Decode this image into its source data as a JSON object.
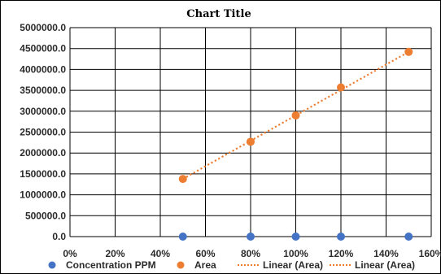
{
  "colors": {
    "concentration": "#4472C4",
    "area": "#ED7D31",
    "grid": "#000000",
    "frame": "#000000"
  },
  "chart_data": {
    "type": "scatter",
    "title": "Chart Title",
    "xlabel": "",
    "ylabel": "",
    "xlim": [
      0,
      1.6
    ],
    "ylim": [
      0,
      5000000
    ],
    "x_ticks": [
      "0%",
      "20%",
      "40%",
      "60%",
      "80%",
      "100%",
      "120%",
      "140%",
      "160%"
    ],
    "y_ticks": [
      "0.0",
      "500000.0",
      "1000000.0",
      "1500000.0",
      "2000000.0",
      "2500000.0",
      "3000000.0",
      "3500000.0",
      "4000000.0",
      "4500000.0",
      "5000000.0"
    ],
    "grid": true,
    "legend_position": "bottom",
    "series": [
      {
        "name": "Concentration PPM",
        "color": "#4472C4",
        "marker": "circle",
        "x": [
          0.5,
          0.8,
          1.0,
          1.2,
          1.5
        ],
        "y": [
          0,
          0,
          0,
          0,
          0
        ]
      },
      {
        "name": "Area",
        "color": "#ED7D31",
        "marker": "circle",
        "x": [
          0.5,
          0.8,
          1.0,
          1.2,
          1.5
        ],
        "y": [
          1380000,
          2270000,
          2900000,
          3570000,
          4420000
        ]
      }
    ],
    "trendlines": [
      {
        "name": "Linear (Area)",
        "series": "Area",
        "color": "#ED7D31",
        "style": "dotted",
        "x": [
          0.5,
          1.5
        ],
        "y": [
          1380000,
          4420000
        ]
      },
      {
        "name": "Linear (Area)",
        "series": "Area",
        "color": "#ED7D31",
        "style": "dotted",
        "x": [
          0.5,
          1.5
        ],
        "y": [
          1380000,
          4420000
        ]
      }
    ],
    "legend": [
      {
        "label": "Concentration PPM",
        "kind": "marker",
        "color": "#4472C4"
      },
      {
        "label": "Area",
        "kind": "marker",
        "color": "#ED7D31"
      },
      {
        "label": "Linear (Area)",
        "kind": "line",
        "color": "#ED7D31"
      },
      {
        "label": "Linear (Area)",
        "kind": "line",
        "color": "#ED7D31"
      }
    ]
  }
}
